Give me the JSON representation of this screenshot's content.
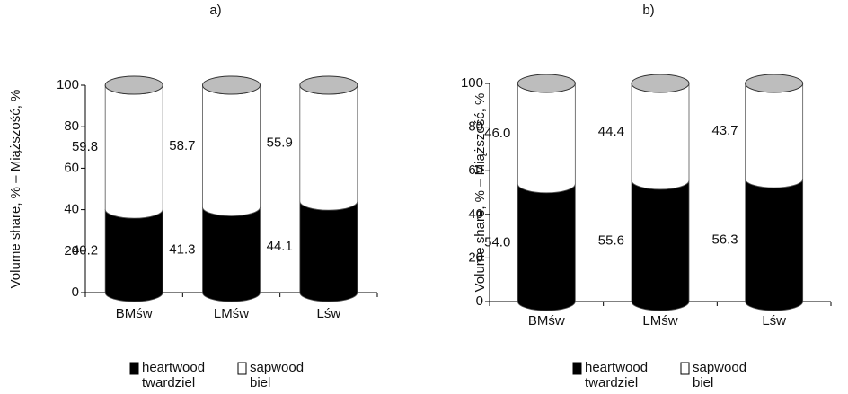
{
  "chart_data": [
    {
      "type": "bar",
      "stacked": true,
      "title": "a)",
      "y_label": "Volume share, % – Miąższość, %",
      "categories": [
        "BMśw",
        "LMśw",
        "Lśw"
      ],
      "series": [
        {
          "name": "heartwood",
          "name_pl": "twardziel",
          "color": "#000000",
          "values": [
            40.2,
            41.3,
            44.1
          ]
        },
        {
          "name": "sapwood",
          "name_pl": "biel",
          "color": "#ffffff",
          "values": [
            59.8,
            58.7,
            55.9
          ]
        }
      ],
      "ylim": [
        0,
        100
      ],
      "yticks": [
        0,
        20,
        40,
        60,
        80,
        100
      ]
    },
    {
      "type": "bar",
      "stacked": true,
      "title": "b)",
      "y_label": "Volume share, % – Miąższość, %",
      "categories": [
        "BMśw",
        "LMśw",
        "Lśw"
      ],
      "series": [
        {
          "name": "heartwood",
          "name_pl": "twardziel",
          "color": "#000000",
          "values": [
            54.0,
            55.6,
            56.3
          ],
          "value_labels": [
            "54.0",
            "55.6",
            "56.3"
          ]
        },
        {
          "name": "sapwood",
          "name_pl": "biel",
          "color": "#ffffff",
          "values": [
            46.0,
            44.4,
            43.7
          ],
          "value_labels": [
            "46.0",
            "44.4",
            "43.7"
          ]
        }
      ],
      "ylim": [
        0,
        100
      ],
      "yticks": [
        0,
        20,
        40,
        60,
        80,
        100
      ]
    }
  ]
}
